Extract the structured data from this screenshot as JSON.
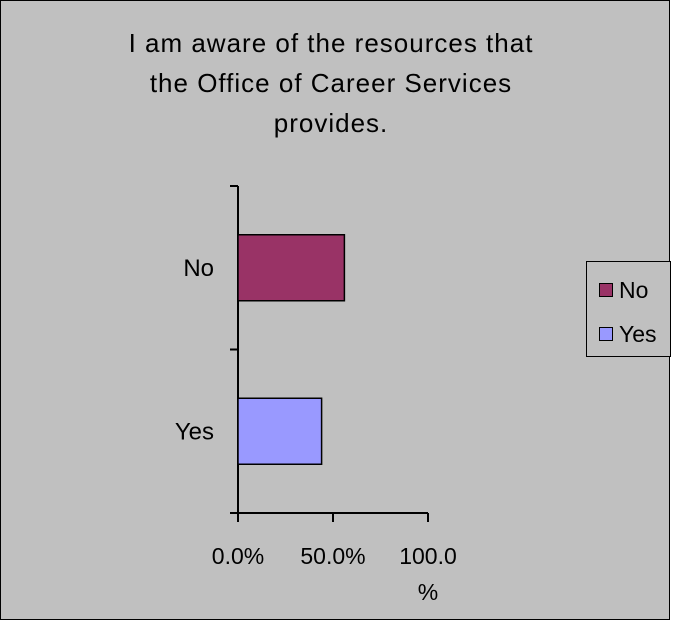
{
  "chart_data": {
    "type": "bar",
    "orientation": "horizontal",
    "title": "I am aware of the resources that the Office of Career Services provides.",
    "title_lines": [
      "I am aware of the resources that",
      "the Office of Career Services",
      "provides."
    ],
    "categories": [
      "No",
      "Yes"
    ],
    "series": [
      {
        "name": "No",
        "color": "#993366",
        "values": [
          56.0,
          null
        ]
      },
      {
        "name": "Yes",
        "color": "#9999ff",
        "values": [
          null,
          44.0
        ]
      }
    ],
    "xlim": [
      0,
      100
    ],
    "x_ticks": [
      0,
      50,
      100
    ],
    "x_tick_labels": [
      [
        "0.0%"
      ],
      [
        "50.0%"
      ],
      [
        "100.0",
        "%"
      ]
    ],
    "xlabel": "",
    "ylabel": "",
    "grid": false,
    "legend_position": "right",
    "legend": [
      "No",
      "Yes"
    ],
    "background_color": "#c0c0c0"
  }
}
